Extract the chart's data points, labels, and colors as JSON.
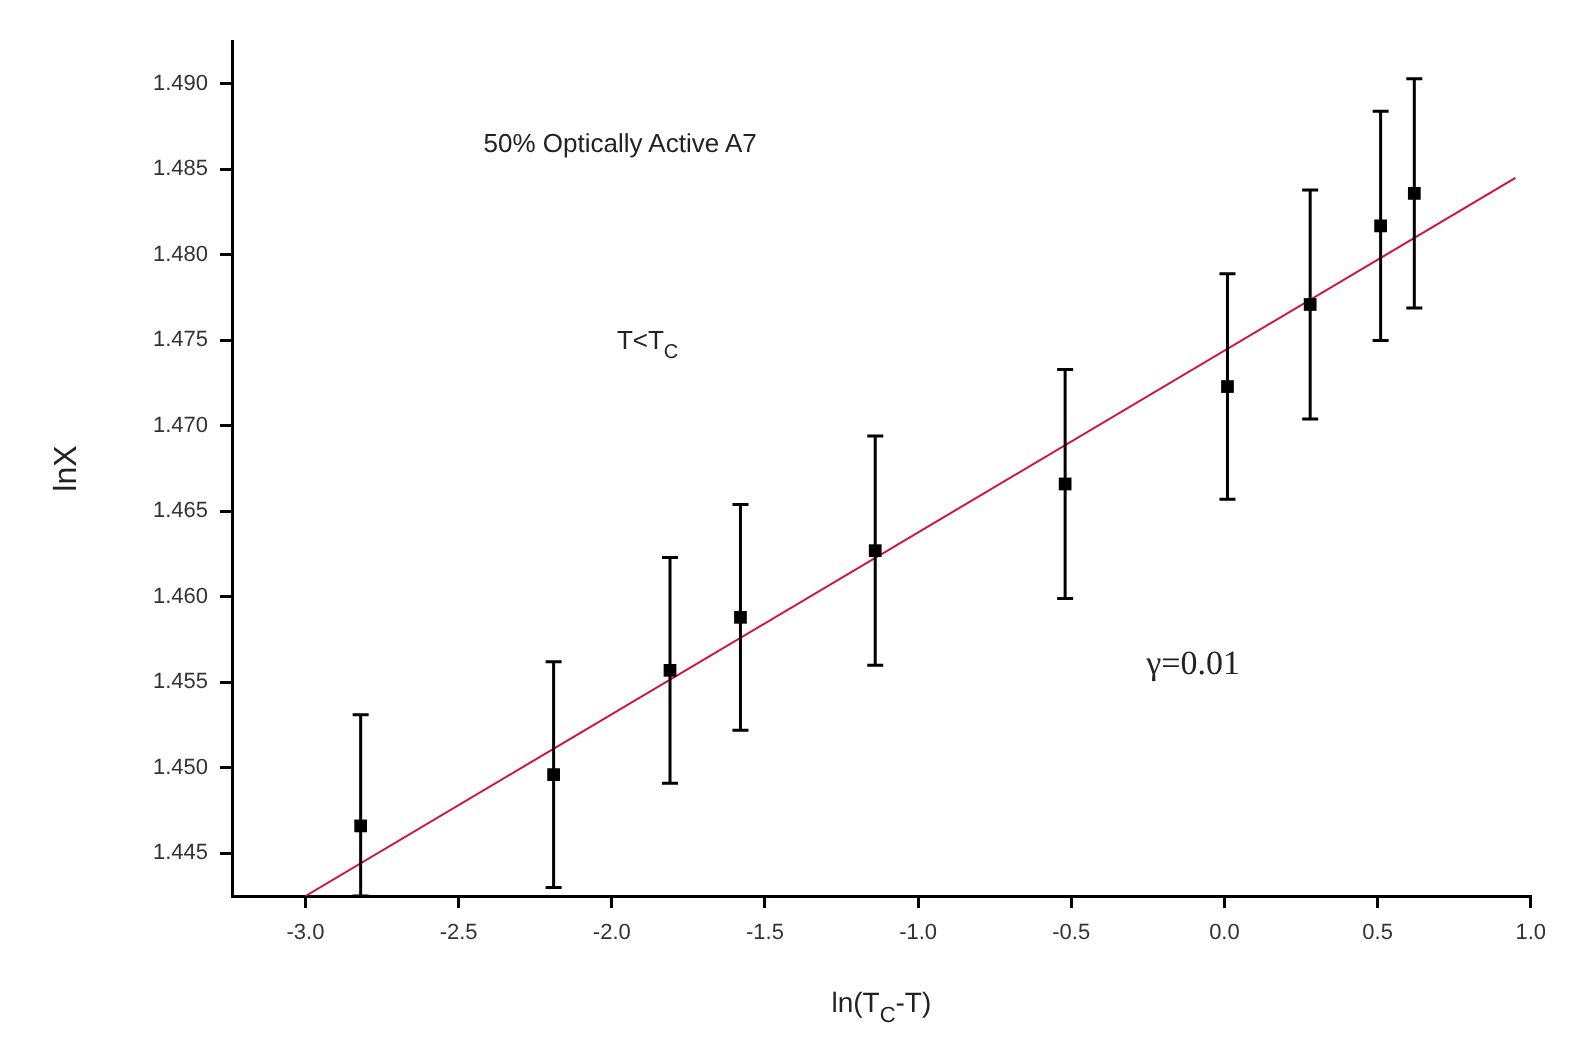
{
  "chart_data": {
    "type": "scatter",
    "xlabel": "ln(T$_{C}$-T)",
    "ylabel": "lnX",
    "annotations": [
      "50% Optically Active A7",
      "T<T$_{C}$",
      "γ=0.01"
    ],
    "xlim": [
      -3.24,
      1.0
    ],
    "xticks": [
      {
        "value": -3.0,
        "label": "-3.0"
      },
      {
        "value": -2.5,
        "label": "-2.5"
      },
      {
        "value": -2.0,
        "label": "-2.0"
      },
      {
        "value": -1.5,
        "label": "-1.5"
      },
      {
        "value": -1.0,
        "label": "-1.0"
      },
      {
        "value": -0.5,
        "label": "-0.5"
      },
      {
        "value": 0.0,
        "label": "0.0"
      },
      {
        "value": 0.5,
        "label": "0.5"
      },
      {
        "value": 1.0,
        "label": "1.0"
      }
    ],
    "ylim": [
      1.4425,
      1.4925
    ],
    "yticks": [
      1.445,
      {
        "value": 1.45,
        "label": "1.450"
      },
      1.455,
      {
        "value": 1.46,
        "label": "1.460"
      },
      1.465,
      {
        "value": 1.47,
        "label": "1.470"
      },
      1.475,
      {
        "value": 1.48,
        "label": "1.480"
      },
      1.485,
      {
        "value": 1.49,
        "label": "1.490"
      }
    ],
    "grid": false,
    "legend": false,
    "series": [
      {
        "color": "#000000",
        "marker": "square",
        "x": [
          -2.82,
          -2.19,
          -1.81,
          -1.58,
          -1.14,
          -0.52,
          0.01,
          0.28,
          0.51,
          0.62
        ],
        "values": [
          1.4466,
          1.4496,
          1.4557,
          1.4588,
          1.4627,
          1.4666,
          1.4723,
          1.4771,
          1.4817,
          1.4836
        ],
        "errors": [
          [
            1.4425,
            1.4531
          ],
          0.0066,
          0.0066,
          0.0066,
          0.0067,
          0.0067,
          0.0066,
          0.0067,
          0.0067,
          0.0067
        ]
      },
      {
        "type": "line",
        "color": "#d0103a",
        "marker": "none",
        "line_style": "solid",
        "x": [
          -3.0,
          0.95
        ],
        "values": [
          1.4425,
          1.4845
        ]
      }
    ]
  }
}
